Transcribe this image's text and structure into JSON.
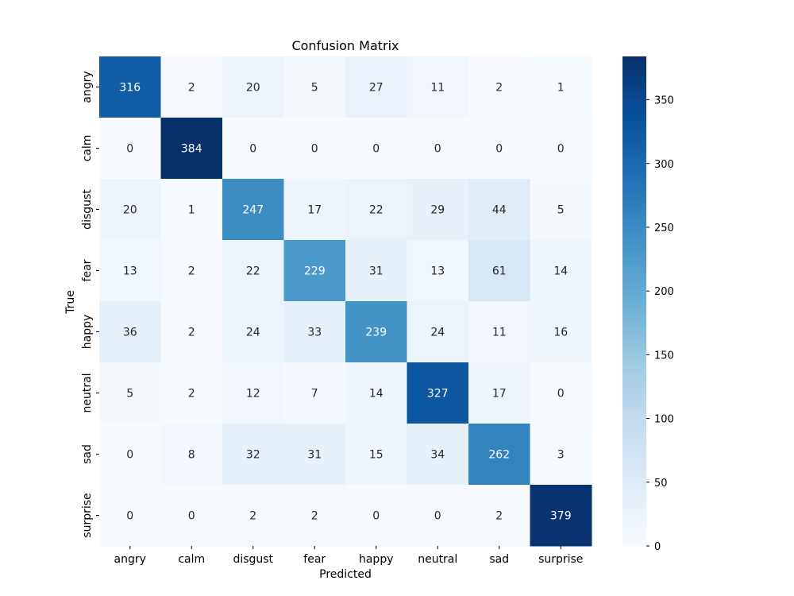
{
  "chart_data": {
    "type": "heatmap",
    "title": "Confusion Matrix",
    "xlabel": "Predicted",
    "ylabel": "True",
    "x_categories": [
      "angry",
      "calm",
      "disgust",
      "fear",
      "happy",
      "neutral",
      "sad",
      "surprise"
    ],
    "y_categories": [
      "angry",
      "calm",
      "disgust",
      "fear",
      "happy",
      "neutral",
      "sad",
      "surprise"
    ],
    "matrix": [
      [
        316,
        2,
        20,
        5,
        27,
        11,
        2,
        1
      ],
      [
        0,
        384,
        0,
        0,
        0,
        0,
        0,
        0
      ],
      [
        20,
        1,
        247,
        17,
        22,
        29,
        44,
        5
      ],
      [
        13,
        2,
        22,
        229,
        31,
        13,
        61,
        14
      ],
      [
        36,
        2,
        24,
        33,
        239,
        24,
        11,
        16
      ],
      [
        5,
        2,
        12,
        7,
        14,
        327,
        17,
        0
      ],
      [
        0,
        8,
        32,
        31,
        15,
        34,
        262,
        3
      ],
      [
        0,
        0,
        2,
        2,
        0,
        0,
        2,
        379
      ]
    ],
    "colorbar": {
      "min": 0,
      "max": 384,
      "ticks": [
        0,
        50,
        100,
        150,
        200,
        250,
        300,
        350
      ]
    },
    "colormap": [
      "#f7fbff",
      "#deebf7",
      "#c6dbef",
      "#9ecae1",
      "#6baed6",
      "#4292c6",
      "#2171b5",
      "#08519c",
      "#08306b"
    ]
  }
}
